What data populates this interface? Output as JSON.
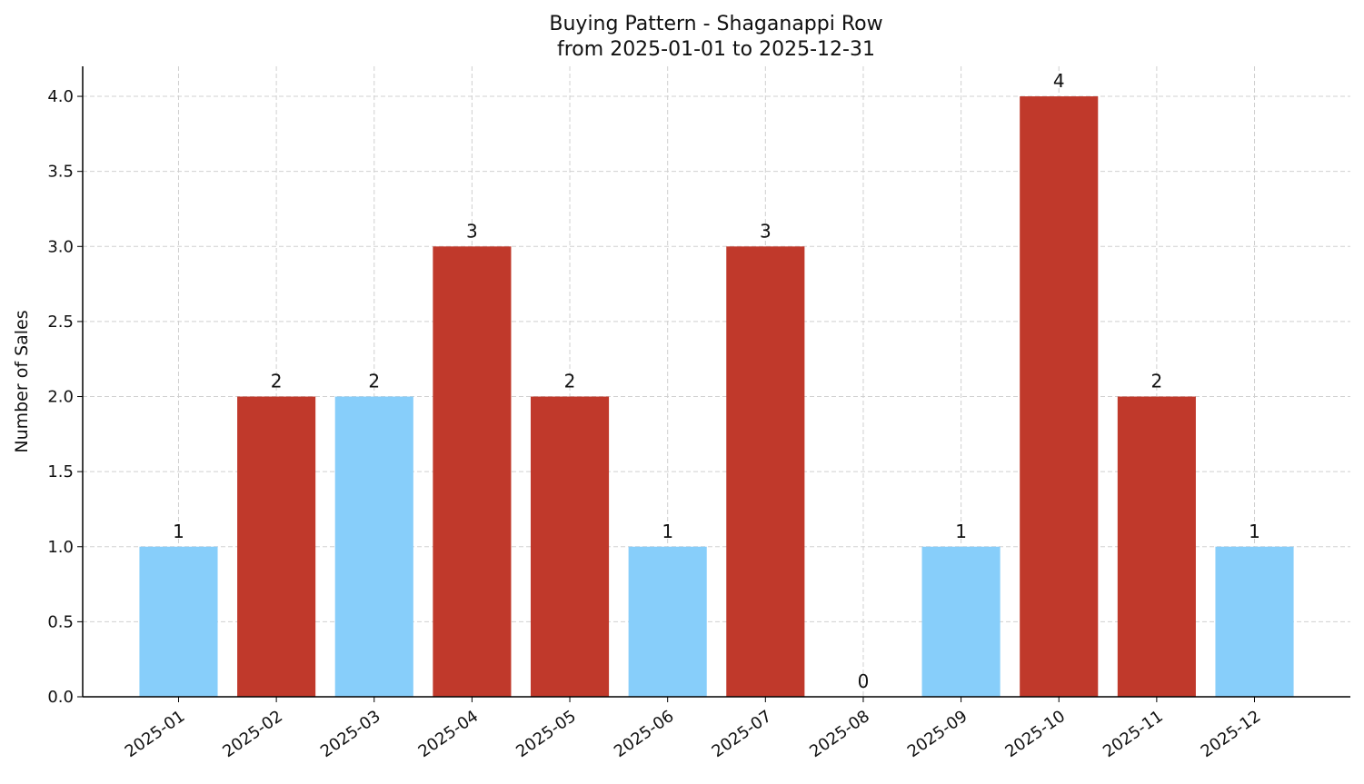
{
  "chart_data": {
    "type": "bar",
    "title": "Buying Pattern - Shaganappi Row",
    "subtitle": "from 2025-01-01 to 2025-12-31",
    "y_label": "Number of Sales",
    "categories": [
      "2025-01",
      "2025-02",
      "2025-03",
      "2025-04",
      "2025-05",
      "2025-06",
      "2025-07",
      "2025-08",
      "2025-09",
      "2025-10",
      "2025-11",
      "2025-12"
    ],
    "values": [
      1,
      2,
      2,
      3,
      2,
      1,
      3,
      0,
      1,
      4,
      2,
      1
    ],
    "colors": [
      "#87cefa",
      "#c0392b",
      "#87cefa",
      "#c0392b",
      "#c0392b",
      "#87cefa",
      "#c0392b",
      "#c0392b",
      "#87cefa",
      "#c0392b",
      "#c0392b",
      "#87cefa"
    ],
    "ylim": [
      0,
      4.2
    ],
    "yticks": [
      {
        "value": 0,
        "label": "0.0"
      },
      0.5,
      {
        "value": 1,
        "label": "1.0"
      },
      1.5,
      {
        "value": 2,
        "label": "2.0"
      },
      2.5,
      {
        "value": 3,
        "label": "3.0"
      },
      3.5,
      {
        "value": 4,
        "label": "4.0"
      }
    ],
    "grid": true
  }
}
